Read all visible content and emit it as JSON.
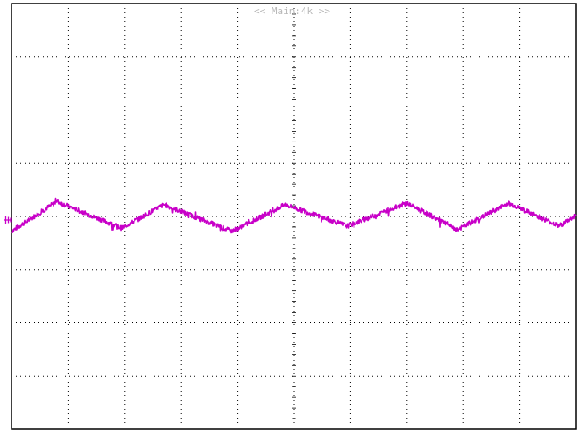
{
  "header": {
    "memory_label": "<< Main:4k >>"
  },
  "ground_marker": {
    "icon": "ground-reference-icon",
    "color": "#c800c8"
  },
  "colors": {
    "trace": "#c800c8",
    "border": "#000000",
    "grid": "#000000",
    "mode_label": "#b8b8b8"
  },
  "chart_data": {
    "type": "line",
    "title": "",
    "xlabel": "",
    "ylabel": "",
    "grid": true,
    "grid_divisions": {
      "x": 10,
      "y": 8
    },
    "xlim": [
      0,
      10
    ],
    "ylim": [
      -4,
      4
    ],
    "series": [
      {
        "x": [
          0,
          0.8,
          1.95,
          2.7,
          3.9,
          4.85,
          5.95,
          7.0,
          7.9,
          8.8,
          9.7,
          10
        ],
        "values": [
          -0.28,
          0.28,
          -0.22,
          0.22,
          -0.28,
          0.22,
          -0.18,
          0.25,
          -0.25,
          0.25,
          -0.18,
          0.02
        ]
      }
    ]
  }
}
